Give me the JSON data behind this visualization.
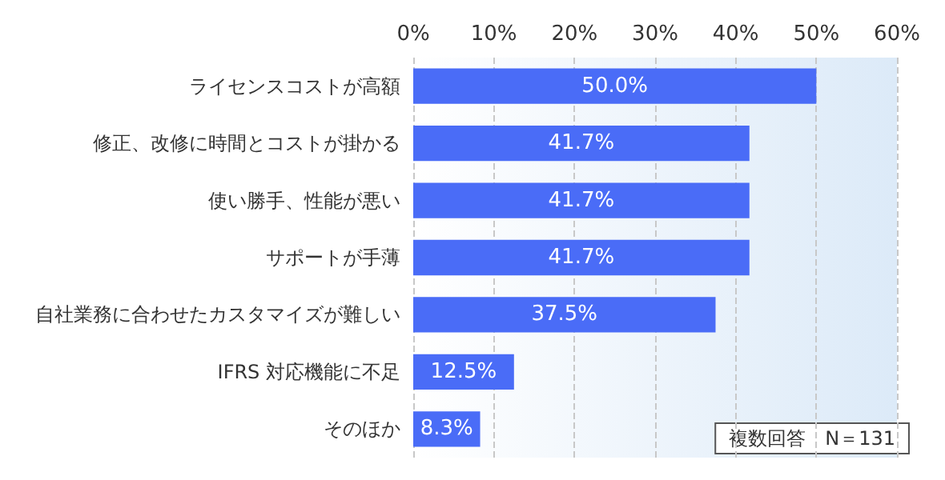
{
  "chart_data": {
    "type": "bar",
    "orientation": "horizontal",
    "categories": [
      "ライセンスコストが高額",
      "修正、改修に時間とコストが掛かる",
      "使い勝手、性能が悪い",
      "サポートが手薄",
      "自社業務に合わせたカスタマイズが難しい",
      "IFRS 対応機能に不足",
      "そのほか"
    ],
    "values": [
      50.0,
      41.7,
      41.7,
      41.7,
      37.5,
      12.5,
      8.3
    ],
    "value_labels": [
      "50.0%",
      "41.7%",
      "41.7%",
      "41.7%",
      "37.5%",
      "12.5%",
      "8.3%"
    ],
    "color": "#4a6cf7",
    "xlim": [
      0,
      60
    ],
    "xticks": [
      {
        "value": 0,
        "label": "0%"
      },
      {
        "value": 10,
        "label": "10%"
      },
      {
        "value": 20,
        "label": "20%"
      },
      {
        "value": 30,
        "label": "30%"
      },
      {
        "value": 40,
        "label": "40%"
      },
      {
        "value": 50,
        "label": "50%"
      },
      {
        "value": 60,
        "label": "60%"
      }
    ],
    "grid": "x",
    "annotations": [
      "複数回答　N＝131"
    ]
  }
}
